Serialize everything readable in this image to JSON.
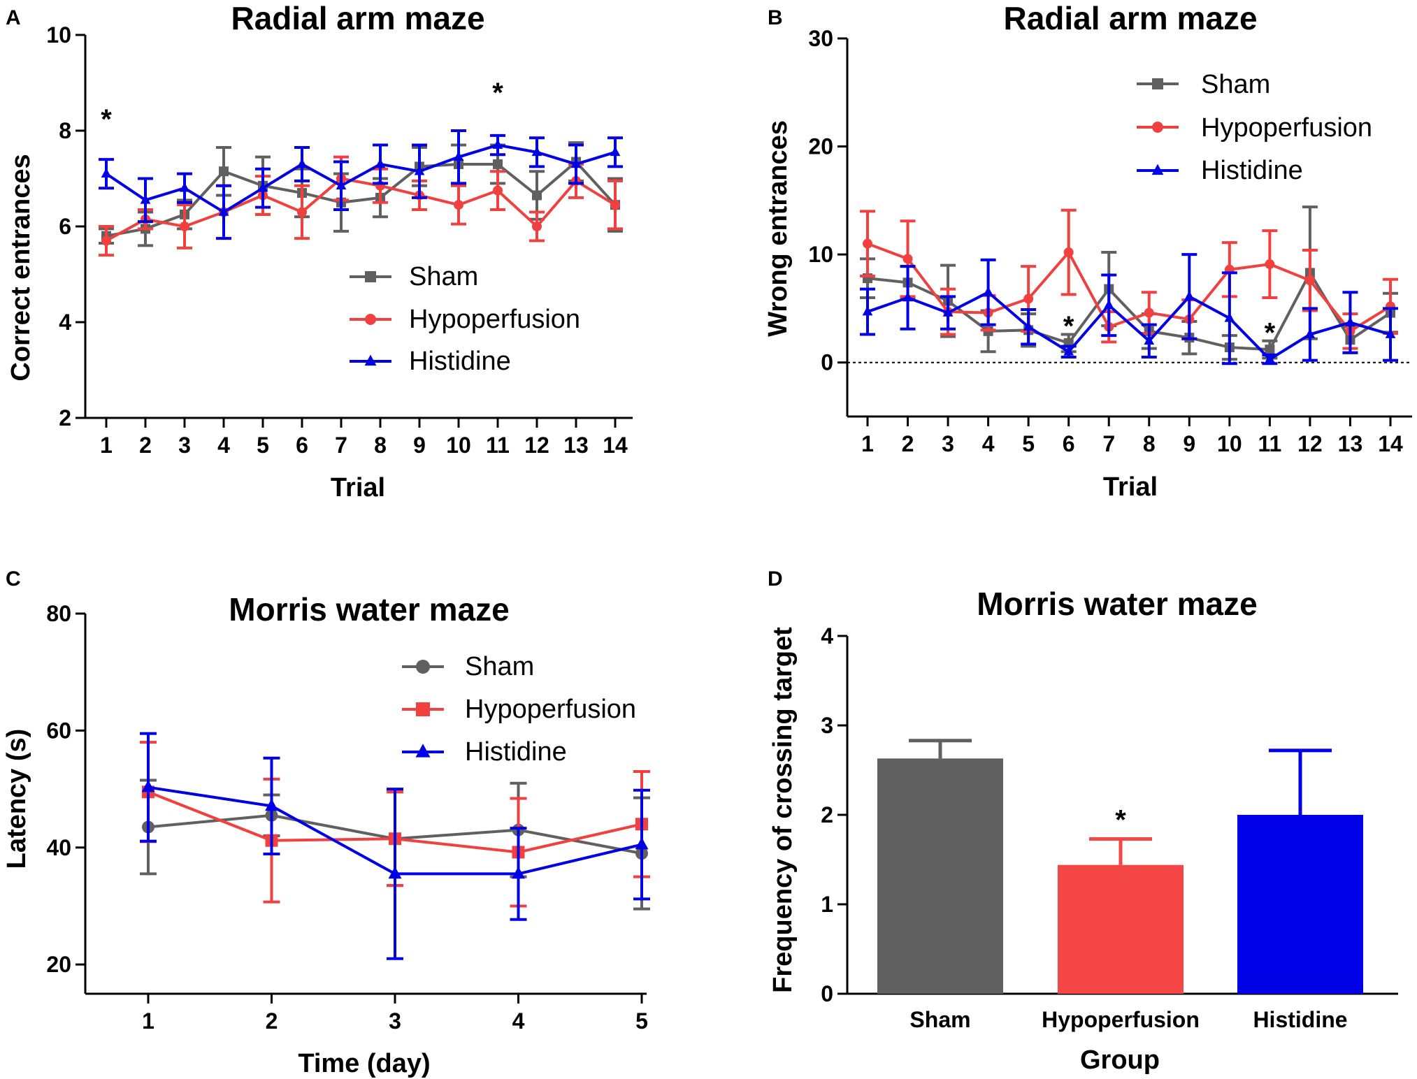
{
  "chart_data": [
    {
      "panel": "A",
      "type": "line",
      "title": "Radial arm maze",
      "xlabel": "Trial",
      "ylabel": "Correct entrances",
      "x": [
        1,
        2,
        3,
        4,
        5,
        6,
        7,
        8,
        9,
        10,
        11,
        12,
        13,
        14
      ],
      "xticks": [
        "1",
        "2",
        "3",
        "4",
        "5",
        "6",
        "7",
        "8",
        "9",
        "10",
        "11",
        "12",
        "13",
        "14"
      ],
      "ylim": [
        2,
        10
      ],
      "yticks": [
        "2",
        "4",
        "6",
        "8",
        "10"
      ],
      "legend_position": "center-right",
      "series": [
        {
          "name": "Sham",
          "color": "#606060",
          "marker": "square",
          "values": [
            5.8,
            5.95,
            6.25,
            7.15,
            6.85,
            6.7,
            6.5,
            6.6,
            7.25,
            7.3,
            7.3,
            6.65,
            7.35,
            6.45
          ],
          "errors": [
            0.15,
            0.35,
            0.3,
            0.5,
            0.6,
            0.5,
            0.6,
            0.4,
            0.4,
            0.4,
            0.4,
            0.5,
            0.4,
            0.55
          ]
        },
        {
          "name": "Hypoperfusion",
          "color": "#f04040",
          "marker": "circle",
          "values": [
            5.7,
            6.15,
            6.0,
            6.3,
            6.65,
            6.3,
            7.0,
            6.85,
            6.65,
            6.45,
            6.75,
            6.0,
            6.95,
            6.45
          ],
          "errors": [
            0.3,
            0.2,
            0.45,
            0.55,
            0.4,
            0.55,
            0.45,
            0.35,
            0.3,
            0.4,
            0.4,
            0.3,
            0.35,
            0.5
          ]
        },
        {
          "name": "Histidine",
          "color": "#0000e6",
          "marker": "triangle",
          "values": [
            7.1,
            6.55,
            6.8,
            6.3,
            6.8,
            7.3,
            6.85,
            7.3,
            7.15,
            7.45,
            7.7,
            7.55,
            7.3,
            7.55
          ],
          "errors": [
            0.3,
            0.45,
            0.3,
            0.55,
            0.4,
            0.35,
            0.5,
            0.4,
            0.55,
            0.55,
            0.2,
            0.3,
            0.4,
            0.3
          ]
        }
      ],
      "annotations": [
        {
          "text": "*",
          "x": 1,
          "y": 8.25
        },
        {
          "text": "*",
          "x": 11,
          "y": 8.8
        }
      ]
    },
    {
      "panel": "B",
      "type": "line",
      "title": "Radial arm maze",
      "xlabel": "Trial",
      "ylabel": "Wrong entrances",
      "x": [
        1,
        2,
        3,
        4,
        5,
        6,
        7,
        8,
        9,
        10,
        11,
        12,
        13,
        14
      ],
      "xticks": [
        "1",
        "2",
        "3",
        "4",
        "5",
        "6",
        "7",
        "8",
        "9",
        "10",
        "11",
        "12",
        "13",
        "14"
      ],
      "ylim": [
        -5,
        30
      ],
      "yticks": [
        "0",
        "10",
        "20",
        "30"
      ],
      "zero_line": true,
      "legend_position": "top-right",
      "series": [
        {
          "name": "Sham",
          "color": "#606060",
          "marker": "square",
          "values": [
            7.8,
            7.4,
            5.7,
            2.9,
            3.0,
            1.8,
            6.8,
            2.9,
            2.3,
            1.4,
            1.2,
            8.3,
            2.1,
            4.6
          ],
          "errors": [
            1.8,
            1.5,
            3.3,
            1.9,
            1.5,
            0.8,
            3.4,
            1.6,
            1.5,
            1.1,
            0.8,
            6.1,
            1.2,
            1.8
          ]
        },
        {
          "name": "Hypoperfusion",
          "color": "#f04040",
          "marker": "circle",
          "values": [
            11.0,
            9.6,
            4.7,
            4.6,
            5.9,
            10.2,
            3.3,
            4.6,
            4.0,
            8.6,
            9.1,
            7.6,
            2.9,
            5.2
          ],
          "errors": [
            3.0,
            3.5,
            2.1,
            1.6,
            3.0,
            3.9,
            1.4,
            1.9,
            1.8,
            2.5,
            3.1,
            2.8,
            1.6,
            2.5
          ]
        },
        {
          "name": "Histidine",
          "color": "#0000e6",
          "marker": "triangle",
          "values": [
            4.7,
            6.0,
            4.6,
            6.5,
            3.3,
            1.0,
            5.3,
            2.0,
            6.1,
            4.1,
            0.3,
            2.6,
            3.7,
            2.6
          ],
          "errors": [
            2.1,
            2.9,
            1.5,
            3.0,
            1.6,
            0.5,
            2.8,
            1.5,
            3.9,
            4.2,
            0.4,
            2.4,
            2.8,
            2.4
          ]
        }
      ],
      "annotations": [
        {
          "text": "*",
          "x": 6,
          "y": 3.4
        },
        {
          "text": "*",
          "x": 11,
          "y": 2.8
        }
      ]
    },
    {
      "panel": "C",
      "type": "line",
      "title": "Morris water maze",
      "xlabel": "Time (day)",
      "ylabel": "Latency (s)",
      "x": [
        1,
        2,
        3,
        4,
        5
      ],
      "xticks": [
        "1",
        "2",
        "3",
        "4",
        "5"
      ],
      "ylim": [
        15,
        80
      ],
      "yticks": [
        "20",
        "40",
        "60",
        "80"
      ],
      "legend_position": "top-right",
      "series": [
        {
          "name": "Sham",
          "color": "#606060",
          "marker": "circle",
          "values": [
            43.5,
            45.5,
            41.5,
            43.0,
            39.0
          ],
          "errors": [
            8.0,
            3.5,
            8.0,
            8.0,
            9.5
          ]
        },
        {
          "name": "Hypoperfusion",
          "color": "#f04040",
          "marker": "square",
          "values": [
            49.5,
            41.2,
            41.5,
            39.2,
            44.0
          ],
          "errors": [
            8.5,
            10.5,
            8.0,
            9.2,
            9.0
          ]
        },
        {
          "name": "Histidine",
          "color": "#0000e6",
          "marker": "triangle",
          "values": [
            50.3,
            47.1,
            35.5,
            35.5,
            40.5
          ],
          "errors": [
            9.2,
            8.2,
            14.5,
            7.8,
            9.3
          ]
        }
      ]
    },
    {
      "panel": "D",
      "type": "bar",
      "title": "Morris water maze",
      "xlabel": "Group",
      "ylabel": "Frequency of crossing target",
      "categories": [
        "Sham",
        "Hypoperfusion",
        "Histidine"
      ],
      "values": [
        2.63,
        1.44,
        2.0
      ],
      "errors": [
        0.2,
        0.29,
        0.72
      ],
      "colors": [
        "#606060",
        "#f54646",
        "#0000e6"
      ],
      "ylim": [
        0,
        4
      ],
      "yticks": [
        "0",
        "1",
        "2",
        "3",
        "4"
      ],
      "annotations": [
        {
          "text": "*",
          "category": "Hypoperfusion",
          "y": 1.95
        }
      ]
    }
  ]
}
